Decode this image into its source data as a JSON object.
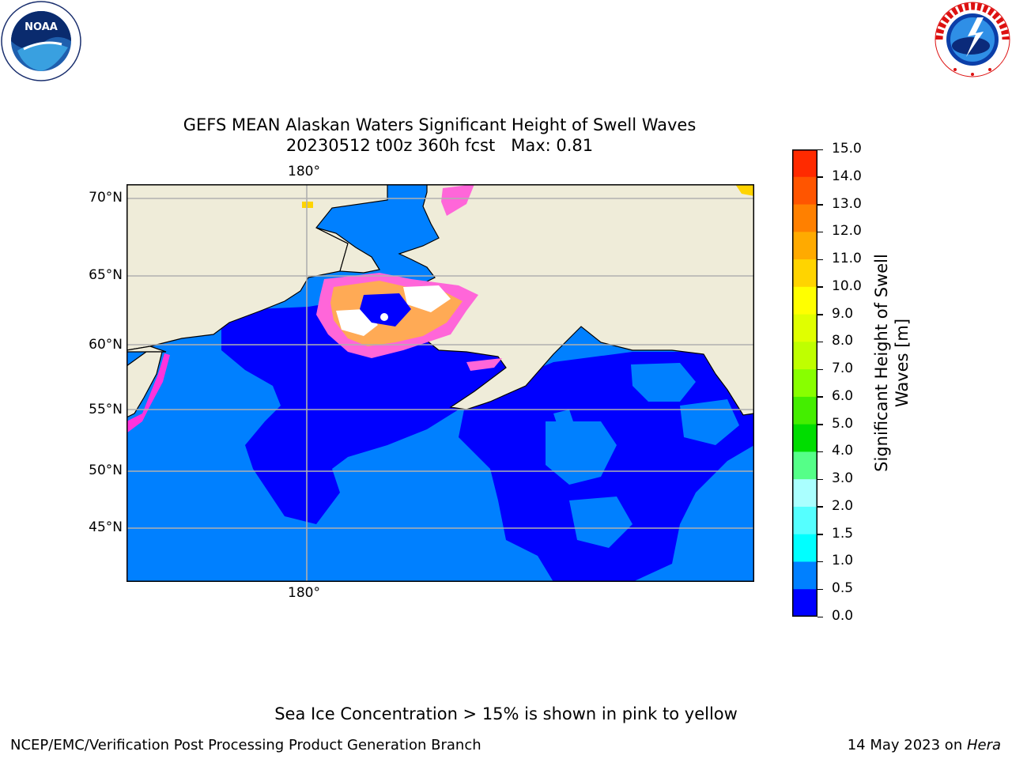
{
  "title_line1": "GEFS MEAN Alaskan Waters Significant Height of Swell Waves",
  "title_line2": "20230512 t00z 360h fcst   Max: 0.81",
  "lon_top": "180°",
  "lon_bottom": "180°",
  "lat_labels": [
    "70°N",
    "65°N",
    "60°N",
    "55°N",
    "50°N",
    "45°N"
  ],
  "colorbar": {
    "label_line1": "Significant Height of Swell",
    "label_line2": "Waves [m]",
    "ticks": [
      "15.0",
      "14.0",
      "13.0",
      "12.0",
      "11.0",
      "10.0",
      "9.0",
      "8.0",
      "7.0",
      "6.0",
      "5.0",
      "4.0",
      "3.0",
      "2.0",
      "1.5",
      "1.0",
      "0.5",
      "0.0"
    ],
    "colors": [
      "#ff0000",
      "#ff2a00",
      "#ff5500",
      "#ff8000",
      "#ffaa00",
      "#ffd400",
      "#ffff00",
      "#e0ff00",
      "#bfff00",
      "#88ff00",
      "#44ee00",
      "#00dd00",
      "#55ff88",
      "#aaffff",
      "#55ffff",
      "#00ffff",
      "#0080ff",
      "#0000ff"
    ]
  },
  "note": "Sea Ice Concentration > 15% is shown in pink to yellow",
  "footer_left": "NCEP/EMC/Verification Post Processing Product Generation Branch",
  "footer_right_prefix": "14 May 2023 on ",
  "footer_right_host": "Hera",
  "logos": {
    "left": {
      "name": "noaa-logo",
      "text": "NOAA"
    },
    "right": {
      "name": "nws-logo",
      "text": "NATIONAL WEATHER SERVICE"
    }
  }
}
